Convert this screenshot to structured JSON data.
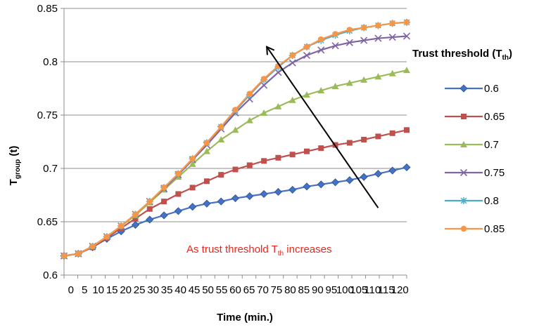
{
  "chart_data": {
    "type": "line",
    "title": "",
    "xlabel": "Time (min.)",
    "ylabel_main": "T",
    "ylabel_sub": "group",
    "ylabel_tail": " (t)",
    "xlim": [
      0,
      120
    ],
    "ylim": [
      0.6,
      0.85
    ],
    "x_ticks": [
      0,
      5,
      10,
      15,
      20,
      25,
      30,
      35,
      40,
      45,
      50,
      55,
      60,
      65,
      70,
      75,
      80,
      85,
      90,
      95,
      100,
      105,
      110,
      115,
      120
    ],
    "y_ticks": [
      0.6,
      0.65,
      0.7,
      0.75,
      0.8,
      0.85
    ],
    "grid": "horizontal",
    "legend_title_main": "Trust threshold (T",
    "legend_title_sub": "th",
    "legend_title_tail": ")",
    "legend_position": "right",
    "annotation_main": "As  trust threshold T",
    "annotation_sub": "th",
    "annotation_tail": " increases",
    "annotation_color": "#e8281e",
    "x": [
      0,
      5,
      10,
      15,
      20,
      25,
      30,
      35,
      40,
      45,
      50,
      55,
      60,
      65,
      70,
      75,
      80,
      85,
      90,
      95,
      100,
      105,
      110,
      115,
      120
    ],
    "series": [
      {
        "name": "0.6",
        "marker": "diamond",
        "color": "#4472c4",
        "values": [
          0.618,
          0.62,
          0.626,
          0.634,
          0.641,
          0.647,
          0.652,
          0.656,
          0.66,
          0.664,
          0.667,
          0.669,
          0.672,
          0.674,
          0.676,
          0.678,
          0.68,
          0.683,
          0.685,
          0.687,
          0.689,
          0.692,
          0.695,
          0.698,
          0.701
        ]
      },
      {
        "name": "0.65",
        "marker": "square",
        "color": "#c0504d",
        "values": [
          0.618,
          0.62,
          0.626,
          0.635,
          0.644,
          0.653,
          0.662,
          0.669,
          0.676,
          0.682,
          0.688,
          0.694,
          0.699,
          0.703,
          0.707,
          0.71,
          0.713,
          0.716,
          0.719,
          0.722,
          0.724,
          0.727,
          0.73,
          0.733,
          0.736
        ]
      },
      {
        "name": "0.7",
        "marker": "triangle",
        "color": "#9bbb59",
        "values": [
          0.618,
          0.62,
          0.627,
          0.636,
          0.646,
          0.656,
          0.668,
          0.68,
          0.692,
          0.704,
          0.716,
          0.727,
          0.736,
          0.745,
          0.752,
          0.758,
          0.764,
          0.769,
          0.773,
          0.777,
          0.78,
          0.783,
          0.786,
          0.789,
          0.792
        ]
      },
      {
        "name": "0.75",
        "marker": "x",
        "color": "#8064a2",
        "values": [
          0.618,
          0.62,
          0.627,
          0.636,
          0.646,
          0.657,
          0.669,
          0.681,
          0.694,
          0.708,
          0.722,
          0.737,
          0.752,
          0.765,
          0.778,
          0.79,
          0.799,
          0.806,
          0.811,
          0.815,
          0.818,
          0.82,
          0.822,
          0.823,
          0.824
        ]
      },
      {
        "name": "0.8",
        "marker": "star",
        "color": "#4bacc6",
        "values": [
          0.618,
          0.62,
          0.627,
          0.636,
          0.646,
          0.657,
          0.669,
          0.682,
          0.695,
          0.709,
          0.724,
          0.739,
          0.754,
          0.769,
          0.783,
          0.795,
          0.806,
          0.814,
          0.82,
          0.825,
          0.829,
          0.832,
          0.834,
          0.836,
          0.837
        ]
      },
      {
        "name": "0.85",
        "marker": "circle",
        "color": "#f79646",
        "values": [
          0.618,
          0.62,
          0.627,
          0.636,
          0.646,
          0.657,
          0.669,
          0.682,
          0.695,
          0.709,
          0.724,
          0.739,
          0.755,
          0.77,
          0.784,
          0.796,
          0.806,
          0.814,
          0.821,
          0.826,
          0.83,
          0.832,
          0.834,
          0.836,
          0.837
        ]
      }
    ],
    "trend_arrow": {
      "from": [
        110,
        0.663
      ],
      "to": [
        71,
        0.814
      ]
    }
  }
}
